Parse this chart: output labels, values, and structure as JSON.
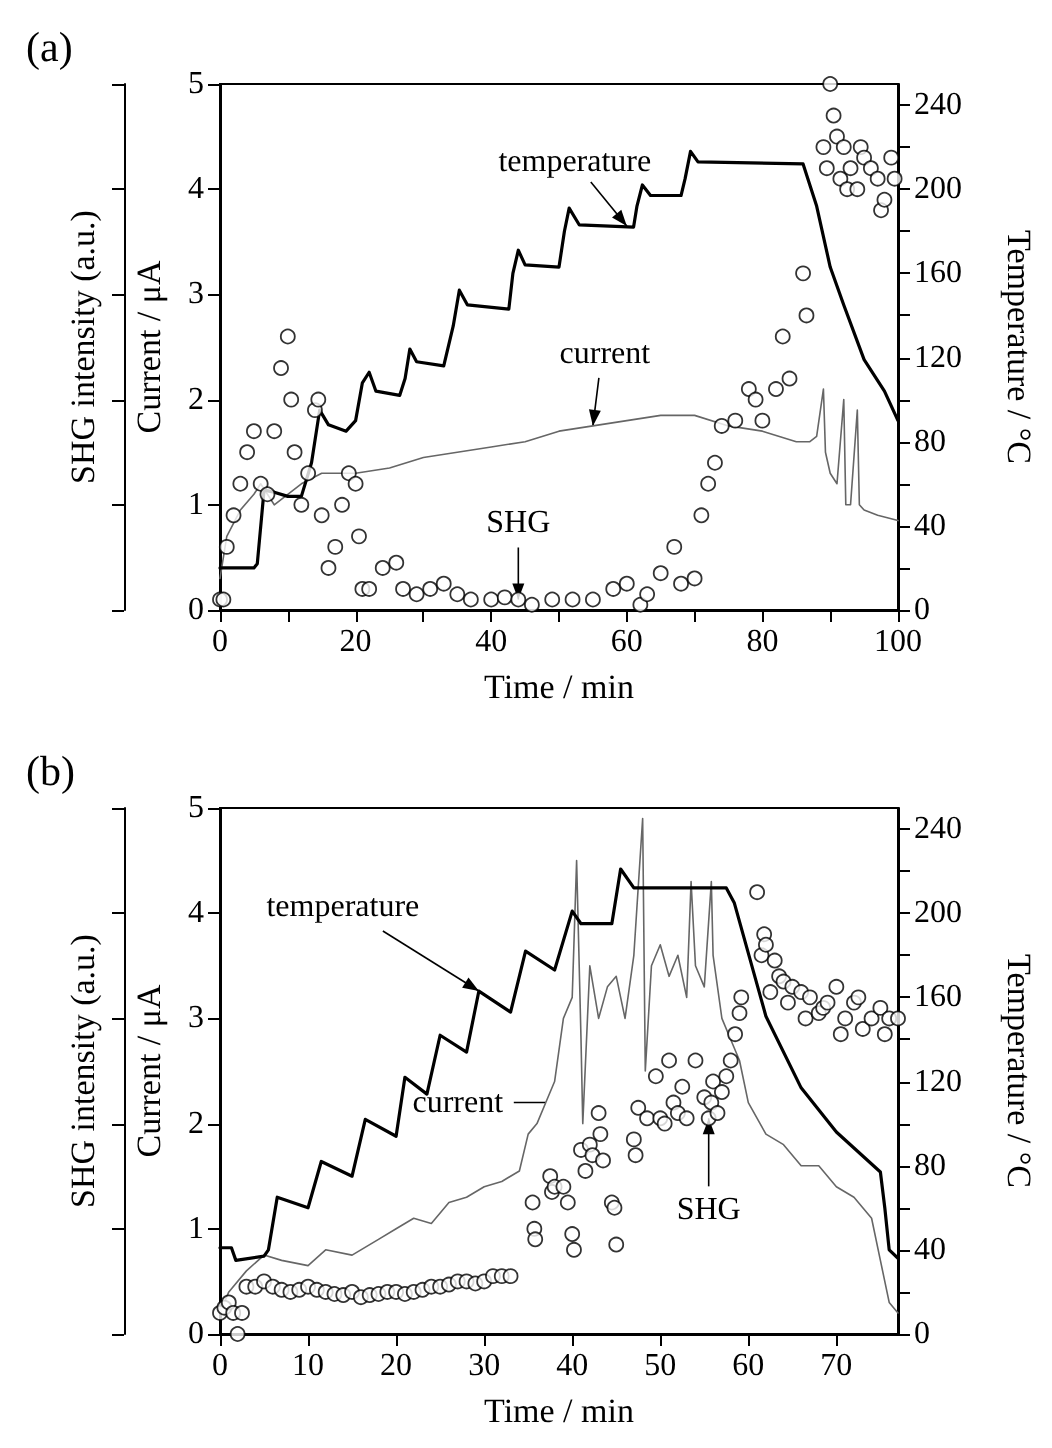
{
  "chart_data": [
    {
      "type": "line",
      "title": "(a)",
      "xlabel": "Time / min",
      "ylabel": "Current / μA",
      "y2label": "Temperature / °C",
      "y3label": "SHG intensity (a.u.)",
      "xlim": [
        0,
        100
      ],
      "xticks": [
        0,
        {
          "value": 10,
          "label": null
        },
        20,
        {
          "value": 30,
          "label": null
        },
        40,
        {
          "value": 50,
          "label": null
        },
        60,
        {
          "value": 70,
          "label": null
        },
        80,
        {
          "value": 90,
          "label": null
        },
        100
      ],
      "ylim": [
        0,
        5
      ],
      "yticks": [
        0,
        1,
        2,
        3,
        4,
        5
      ],
      "y2lim": [
        0,
        250
      ],
      "y2ticks": [
        0,
        {
          "value": 20,
          "label": null
        },
        40,
        {
          "value": 60,
          "label": null
        },
        80,
        {
          "value": 100,
          "label": null
        },
        120,
        {
          "value": 140,
          "label": null
        },
        160,
        {
          "value": 180,
          "label": null
        },
        200,
        {
          "value": 220,
          "label": null
        },
        240
      ],
      "grid": false,
      "annotations": [
        {
          "text": "temperature",
          "x": 60,
          "y": 3.65
        },
        {
          "text": "current",
          "x": 55,
          "y": 1.75
        },
        {
          "text": "SHG",
          "x": 44,
          "y": 0.1
        }
      ],
      "series": [
        {
          "axis": "y2",
          "color": "#000000",
          "marker": "none",
          "line_style": "solid",
          "x": [
            0,
            5,
            5.5,
            6.5,
            8,
            10,
            12,
            13.5,
            14.7,
            16,
            18.6,
            20,
            21,
            22,
            23,
            26.5,
            27.3,
            28,
            29,
            33,
            34.4,
            35.3,
            36.5,
            42.6,
            43.2,
            44,
            45,
            50,
            50.8,
            51.5,
            53,
            61,
            61.5,
            62.3,
            63.5,
            68,
            68.6,
            69.4,
            70.5,
            86,
            88,
            90,
            92,
            95,
            98,
            100
          ],
          "values": [
            20,
            20,
            22,
            57,
            56,
            54,
            54,
            70,
            95,
            88,
            85,
            90,
            108,
            113,
            104,
            102,
            110,
            124,
            118,
            116,
            135,
            152,
            145,
            143,
            160,
            171,
            164,
            163,
            180,
            191,
            183,
            182,
            192,
            202,
            197,
            197,
            205,
            218,
            213,
            212,
            192,
            163,
            145,
            119,
            104,
            90
          ]
        },
        {
          "color": "#666666",
          "marker": "none",
          "line_style": "solid",
          "x": [
            0,
            1,
            3,
            5,
            6,
            8,
            10,
            12,
            15,
            20,
            25,
            30,
            35,
            40,
            45,
            50,
            55,
            60,
            65,
            70,
            75,
            80,
            85,
            87,
            88,
            89,
            89.3,
            90,
            91,
            92,
            92.3,
            93,
            94,
            94.3,
            95,
            97,
            100
          ],
          "values": [
            0.3,
            0.7,
            0.95,
            1.1,
            1.2,
            1.0,
            1.1,
            1.2,
            1.3,
            1.3,
            1.35,
            1.45,
            1.5,
            1.55,
            1.6,
            1.7,
            1.75,
            1.8,
            1.85,
            1.85,
            1.75,
            1.7,
            1.6,
            1.6,
            1.65,
            2.1,
            1.5,
            1.3,
            1.2,
            2.0,
            1.0,
            1.0,
            1.9,
            1.0,
            0.95,
            0.9,
            0.85
          ]
        },
        {
          "type": "scatter",
          "color": "#000000",
          "marker": "circle",
          "x": [
            0,
            0.5,
            1,
            2,
            3,
            4,
            5,
            6,
            7,
            8,
            9,
            10,
            10.5,
            11,
            12,
            13,
            14,
            14.5,
            15,
            16,
            17,
            18,
            19,
            20,
            20.5,
            21,
            22,
            24,
            26,
            27,
            29,
            31,
            33,
            35,
            37,
            40,
            42,
            44,
            46,
            49,
            52,
            55,
            58,
            60,
            62,
            63,
            65,
            67,
            68,
            70,
            71,
            72,
            73,
            74,
            76,
            78,
            79,
            80,
            82,
            83,
            84,
            86,
            86.5,
            89,
            89.5,
            90,
            90.5,
            91,
            91.5,
            92,
            92.5,
            93,
            94,
            94.5,
            95,
            96,
            97,
            97.5,
            98,
            99,
            99.5
          ],
          "values": [
            0.1,
            0.1,
            0.6,
            0.9,
            1.2,
            1.5,
            1.7,
            1.2,
            1.1,
            1.7,
            2.3,
            2.6,
            2.0,
            1.5,
            1.0,
            1.3,
            1.9,
            2.0,
            0.9,
            0.4,
            0.6,
            1.0,
            1.3,
            1.2,
            0.7,
            0.2,
            0.2,
            0.4,
            0.45,
            0.2,
            0.15,
            0.2,
            0.25,
            0.15,
            0.1,
            0.1,
            0.12,
            0.1,
            0.05,
            0.1,
            0.1,
            0.1,
            0.2,
            0.25,
            0.05,
            0.15,
            0.35,
            0.6,
            0.25,
            0.3,
            0.9,
            1.2,
            1.4,
            1.75,
            1.8,
            2.1,
            2.0,
            1.8,
            2.1,
            2.6,
            2.2,
            3.2,
            2.8,
            4.4,
            4.2,
            5.0,
            4.7,
            4.5,
            4.1,
            4.4,
            4.0,
            4.2,
            4.0,
            4.4,
            4.3,
            4.2,
            4.1,
            3.8,
            3.9,
            4.3,
            4.1
          ]
        }
      ]
    },
    {
      "type": "line",
      "title": "(b)",
      "xlabel": "Time / min",
      "ylabel": "Current / μA",
      "y2label": "Temperature / °C",
      "y3label": "SHG intensity (a.u.)",
      "xlim": [
        0,
        77
      ],
      "xticks": [
        0,
        10,
        20,
        30,
        40,
        50,
        60,
        70
      ],
      "ylim": [
        0,
        5
      ],
      "yticks": [
        0,
        1,
        2,
        3,
        4,
        5
      ],
      "y2lim": [
        0,
        250
      ],
      "y2ticks": [
        0,
        {
          "value": 20,
          "label": null
        },
        40,
        {
          "value": 60,
          "label": null
        },
        80,
        {
          "value": 100,
          "label": null
        },
        120,
        {
          "value": 140,
          "label": null
        },
        160,
        {
          "value": 180,
          "label": null
        },
        200,
        {
          "value": 220,
          "label": null
        },
        240
      ],
      "grid": false,
      "annotations": [
        {
          "text": "temperature",
          "x": 29.4,
          "y": 3.26
        },
        {
          "text": "current",
          "x": 37,
          "y": 2.2
        },
        {
          "text": "SHG",
          "x": 55.5,
          "y": 2.05
        }
      ],
      "series": [
        {
          "axis": "y2",
          "color": "#000000",
          "marker": "none",
          "line_style": "solid",
          "x": [
            0,
            1.3,
            1.8,
            5,
            5.5,
            6.5,
            10,
            11.5,
            15,
            16.5,
            20,
            21,
            23.5,
            25,
            28,
            29.4,
            33,
            34.7,
            38,
            40,
            41,
            44.5,
            45.5,
            47,
            57.5,
            58.4,
            62,
            66,
            70,
            75,
            75.5,
            76,
            77
          ],
          "values": [
            41,
            41,
            35,
            37,
            40,
            65,
            60,
            82,
            75,
            102,
            94,
            122,
            114,
            142,
            134,
            163,
            153,
            182,
            173,
            201,
            195,
            195,
            221,
            212,
            212,
            205,
            151,
            117,
            96,
            77,
            60,
            40,
            36
          ]
        },
        {
          "color": "#666666",
          "marker": "none",
          "line_style": "solid",
          "x": [
            0,
            1,
            3,
            5,
            7,
            10,
            12,
            15,
            18,
            20,
            22,
            24,
            26,
            28,
            30,
            32,
            34,
            35,
            36,
            37,
            38,
            39,
            40,
            40.5,
            41,
            41.2,
            42,
            43,
            44,
            45,
            46,
            47,
            48,
            48.3,
            49,
            50,
            51,
            52,
            53,
            53.5,
            54,
            55,
            55.8,
            56,
            57,
            58,
            59,
            60,
            62,
            64,
            66,
            68,
            70,
            72,
            74,
            75,
            76,
            77
          ],
          "values": [
            0.2,
            0.4,
            0.6,
            0.75,
            0.7,
            0.65,
            0.8,
            0.75,
            0.9,
            1.0,
            1.1,
            1.05,
            1.25,
            1.3,
            1.4,
            1.45,
            1.55,
            1.9,
            2.0,
            2.2,
            2.4,
            3.0,
            3.2,
            4.5,
            2.8,
            2.0,
            3.5,
            3.0,
            3.3,
            3.4,
            3.0,
            3.6,
            4.9,
            2.5,
            3.5,
            3.7,
            3.4,
            3.6,
            3.2,
            4.3,
            3.5,
            3.3,
            4.3,
            3.6,
            3.0,
            2.8,
            2.6,
            2.2,
            1.9,
            1.8,
            1.6,
            1.6,
            1.4,
            1.3,
            1.1,
            0.7,
            0.3,
            0.2
          ]
        },
        {
          "type": "scatter",
          "color": "#000000",
          "marker": "circle",
          "x": [
            0,
            0.5,
            1,
            1.5,
            2,
            2.5,
            3,
            4,
            5,
            6,
            7,
            8,
            9,
            10,
            11,
            12,
            13,
            14,
            15,
            16,
            17,
            18,
            19,
            20,
            21,
            22,
            23,
            24,
            25,
            26,
            27,
            28,
            29,
            30,
            31,
            32,
            33,
            35.5,
            35.7,
            35.8,
            37.5,
            37.7,
            38,
            39,
            39.5,
            40,
            40.2,
            41,
            41.5,
            42,
            42.3,
            43,
            43.2,
            43.5,
            44.5,
            44.8,
            45,
            47,
            47.2,
            47.5,
            48.5,
            49.5,
            50,
            50.5,
            51,
            51.5,
            52,
            52.5,
            53,
            54,
            55,
            55.5,
            55.8,
            56,
            56.5,
            57,
            57.5,
            58,
            58.5,
            59,
            59.2,
            61,
            61.5,
            61.8,
            62,
            62.5,
            63,
            63.5,
            64,
            64.5,
            65,
            66,
            66.5,
            67,
            68,
            68.5,
            69,
            70,
            70.5,
            71,
            72,
            72.5,
            73,
            74,
            75,
            75.5,
            76,
            77
          ],
          "values": [
            0.2,
            0.25,
            0.3,
            0.2,
            0.0,
            0.2,
            0.45,
            0.45,
            0.5,
            0.45,
            0.42,
            0.4,
            0.42,
            0.45,
            0.42,
            0.4,
            0.38,
            0.37,
            0.4,
            0.35,
            0.37,
            0.38,
            0.4,
            0.4,
            0.38,
            0.4,
            0.42,
            0.45,
            0.45,
            0.47,
            0.5,
            0.5,
            0.48,
            0.5,
            0.55,
            0.55,
            0.55,
            1.25,
            1.0,
            0.9,
            1.5,
            1.35,
            1.4,
            1.4,
            1.25,
            0.95,
            0.8,
            1.75,
            1.55,
            1.8,
            1.7,
            2.1,
            1.9,
            1.65,
            1.25,
            1.2,
            0.85,
            1.85,
            1.7,
            2.15,
            2.05,
            2.45,
            2.05,
            2.0,
            2.6,
            2.2,
            2.1,
            2.35,
            2.05,
            2.6,
            2.25,
            2.05,
            2.2,
            2.4,
            2.1,
            2.3,
            2.45,
            2.6,
            2.85,
            3.05,
            3.2,
            4.2,
            3.6,
            3.8,
            3.7,
            3.25,
            3.55,
            3.4,
            3.35,
            3.15,
            3.3,
            3.25,
            3.0,
            3.2,
            3.05,
            3.1,
            3.15,
            3.3,
            2.85,
            3.0,
            3.15,
            3.2,
            2.9,
            3.0,
            3.1,
            2.85,
            3.0,
            3.0
          ]
        }
      ]
    }
  ]
}
